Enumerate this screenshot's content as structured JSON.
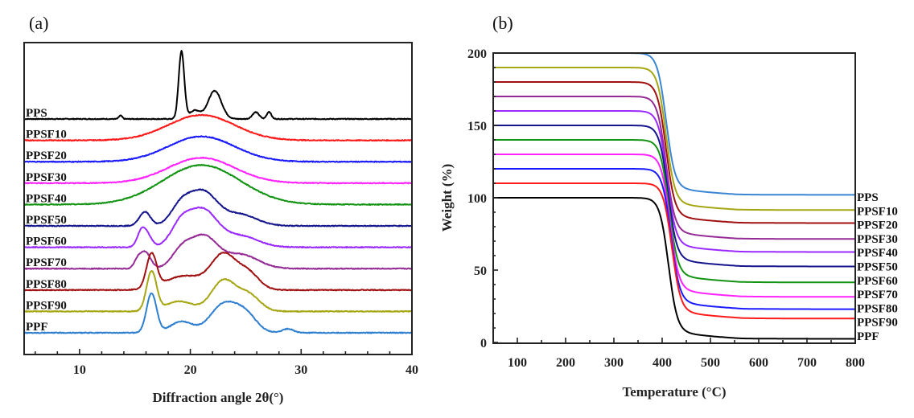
{
  "chart_data": [
    {
      "type": "line",
      "panel": "(a)",
      "title": "",
      "xlabel": "Diffraction angle 2θ(°)",
      "ylabel": "",
      "xlim": [
        5,
        40
      ],
      "xticks": [
        10,
        20,
        30,
        40
      ],
      "yticks_shown": false,
      "grid": false,
      "legend": "inline-left",
      "note": "Stacked XRD patterns (vertically offset, arbitrary intensity); peaks given as [2θ, relative height, width]",
      "series": [
        {
          "name": "PPS",
          "color": "#000000",
          "peaks": [
            [
              13.7,
              0.6,
              0.15
            ],
            [
              19.2,
              12,
              0.25
            ],
            [
              20.4,
              1.5,
              0.5
            ],
            [
              22.2,
              5,
              0.6
            ],
            [
              25.9,
              1.2,
              0.3
            ],
            [
              27.1,
              1.3,
              0.2
            ]
          ]
        },
        {
          "name": "PPSF10",
          "color": "#ff1a1a",
          "peaks": [
            [
              21.0,
              4.5,
              3.0
            ]
          ]
        },
        {
          "name": "PPSF20",
          "color": "#1a1aff",
          "peaks": [
            [
              21.0,
              4.5,
              3.0
            ]
          ]
        },
        {
          "name": "PPSF30",
          "color": "#ff22ff",
          "peaks": [
            [
              21.0,
              4.5,
              3.0
            ]
          ]
        },
        {
          "name": "PPSF40",
          "color": "#129412",
          "peaks": [
            [
              21.0,
              7,
              3.5
            ]
          ]
        },
        {
          "name": "PPSF50",
          "color": "#14148c",
          "peaks": [
            [
              15.9,
              2.5,
              0.5
            ],
            [
              19.1,
              3,
              0.9
            ],
            [
              21.1,
              6,
              1.3
            ],
            [
              24.5,
              2,
              1.5
            ]
          ]
        },
        {
          "name": "PPSF60",
          "color": "#9a2aff",
          "peaks": [
            [
              15.5,
              1,
              0.3
            ],
            [
              15.9,
              3,
              0.5
            ],
            [
              19.1,
              3.5,
              0.9
            ],
            [
              21.1,
              6.5,
              1.3
            ],
            [
              24.5,
              2,
              1.6
            ]
          ]
        },
        {
          "name": "PPSF70",
          "color": "#952b95",
          "peaks": [
            [
              15.2,
              1,
              0.3
            ],
            [
              15.9,
              3,
              0.5
            ],
            [
              19.2,
              3,
              0.9
            ],
            [
              21.2,
              5.5,
              1.2
            ],
            [
              24.5,
              2.5,
              1.6
            ]
          ]
        },
        {
          "name": "PPSF80",
          "color": "#a01010",
          "peaks": [
            [
              16.5,
              6,
              0.45
            ],
            [
              19.5,
              2.5,
              1.8
            ],
            [
              23.0,
              6,
              1.1
            ],
            [
              25.2,
              3,
              1.0
            ]
          ]
        },
        {
          "name": "PPSF90",
          "color": "#a6a612",
          "peaks": [
            [
              16.5,
              7,
              0.45
            ],
            [
              19.0,
              1.8,
              1.2
            ],
            [
              23.0,
              5.5,
              1.1
            ],
            [
              25.3,
              2.8,
              1.0
            ]
          ]
        },
        {
          "name": "PPF",
          "color": "#2f7fd0",
          "peaks": [
            [
              16.5,
              7,
              0.45
            ],
            [
              19.2,
              2,
              1.0
            ],
            [
              23.0,
              5,
              1.2
            ],
            [
              25.0,
              3,
              1.0
            ],
            [
              28.8,
              0.7,
              0.5
            ]
          ]
        }
      ]
    },
    {
      "type": "line",
      "panel": "(b)",
      "title": "",
      "xlabel": "Temperature (°C)",
      "ylabel": "Weight (%)",
      "xlim": [
        50,
        800
      ],
      "ylim": [
        0,
        200
      ],
      "xticks": [
        100,
        200,
        300,
        400,
        500,
        600,
        700,
        800
      ],
      "yticks": [
        0,
        50,
        100,
        150,
        200
      ],
      "grid": false,
      "legend": "right-inline",
      "note": "Stacked TGA curves offset by 10% each; initial plateau, onset ~380-420 °C, residual at 800 °C",
      "series": [
        {
          "name": "PPS",
          "color": "#3a86d4",
          "initial": 200,
          "onset_temp": 400,
          "residual_800": 104.5
        },
        {
          "name": "PPSF10",
          "color": "#a6a612",
          "initial": 190,
          "onset_temp": 400,
          "residual_800": 94
        },
        {
          "name": "PPSF20",
          "color": "#a01010",
          "initial": 180,
          "onset_temp": 400,
          "residual_800": 85
        },
        {
          "name": "PPSF30",
          "color": "#952b95",
          "initial": 170,
          "onset_temp": 400,
          "residual_800": 74
        },
        {
          "name": "PPSF40",
          "color": "#9a2aff",
          "initial": 160,
          "onset_temp": 402,
          "residual_800": 65
        },
        {
          "name": "PPSF50",
          "color": "#14148c",
          "initial": 150,
          "onset_temp": 404,
          "residual_800": 55
        },
        {
          "name": "PPSF60",
          "color": "#129412",
          "initial": 140,
          "onset_temp": 406,
          "residual_800": 44
        },
        {
          "name": "PPSF70",
          "color": "#ff22ff",
          "initial": 130,
          "onset_temp": 408,
          "residual_800": 34
        },
        {
          "name": "PPSF80",
          "color": "#1a1aff",
          "initial": 120,
          "onset_temp": 410,
          "residual_800": 25.5
        },
        {
          "name": "PPSF90",
          "color": "#ff1a1a",
          "initial": 110,
          "onset_temp": 412,
          "residual_800": 19
        },
        {
          "name": "PPF",
          "color": "#000000",
          "initial": 100,
          "onset_temp": 405,
          "residual_800": 5
        }
      ]
    }
  ]
}
